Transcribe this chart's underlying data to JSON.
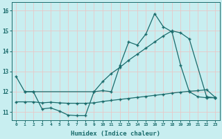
{
  "xlabel": "Humidex (Indice chaleur)",
  "bg_color": "#c8eef0",
  "grid_color": "#e8c8c8",
  "line_color": "#1a6b6b",
  "xlim": [
    -0.5,
    23.5
  ],
  "ylim": [
    10.6,
    16.4
  ],
  "xticks": [
    0,
    1,
    2,
    3,
    4,
    5,
    6,
    7,
    8,
    9,
    10,
    11,
    12,
    13,
    14,
    15,
    16,
    17,
    18,
    19,
    20,
    21,
    22,
    23
  ],
  "yticks": [
    11,
    12,
    13,
    14,
    15,
    16
  ],
  "line1_x": [
    0,
    1,
    2,
    3,
    4,
    5,
    6,
    7,
    8,
    9,
    10,
    11,
    12,
    13,
    14,
    15,
    16,
    17,
    18,
    19,
    20,
    21,
    22,
    23
  ],
  "line1_y": [
    12.75,
    12.0,
    12.0,
    11.15,
    11.2,
    11.05,
    10.85,
    10.82,
    10.82,
    12.0,
    12.05,
    12.0,
    13.3,
    14.45,
    14.3,
    14.85,
    15.85,
    15.2,
    14.95,
    13.3,
    12.0,
    11.75,
    11.7,
    11.7
  ],
  "line2_x": [
    1,
    2,
    9,
    10,
    11,
    12,
    13,
    14,
    15,
    16,
    17,
    18,
    19,
    20,
    22,
    23
  ],
  "line2_y": [
    12.0,
    12.0,
    12.0,
    12.5,
    12.9,
    13.2,
    13.55,
    13.85,
    14.15,
    14.45,
    14.75,
    15.0,
    14.9,
    14.6,
    11.75,
    11.7
  ],
  "line3_x": [
    0,
    1,
    2,
    3,
    4,
    5,
    6,
    7,
    8,
    9,
    10,
    11,
    12,
    13,
    14,
    15,
    16,
    17,
    18,
    19,
    20,
    21,
    22,
    23
  ],
  "line3_y": [
    11.5,
    11.5,
    11.5,
    11.45,
    11.48,
    11.45,
    11.43,
    11.43,
    11.43,
    11.45,
    11.52,
    11.57,
    11.62,
    11.67,
    11.72,
    11.77,
    11.82,
    11.87,
    11.93,
    11.98,
    12.02,
    12.05,
    12.1,
    11.72
  ]
}
